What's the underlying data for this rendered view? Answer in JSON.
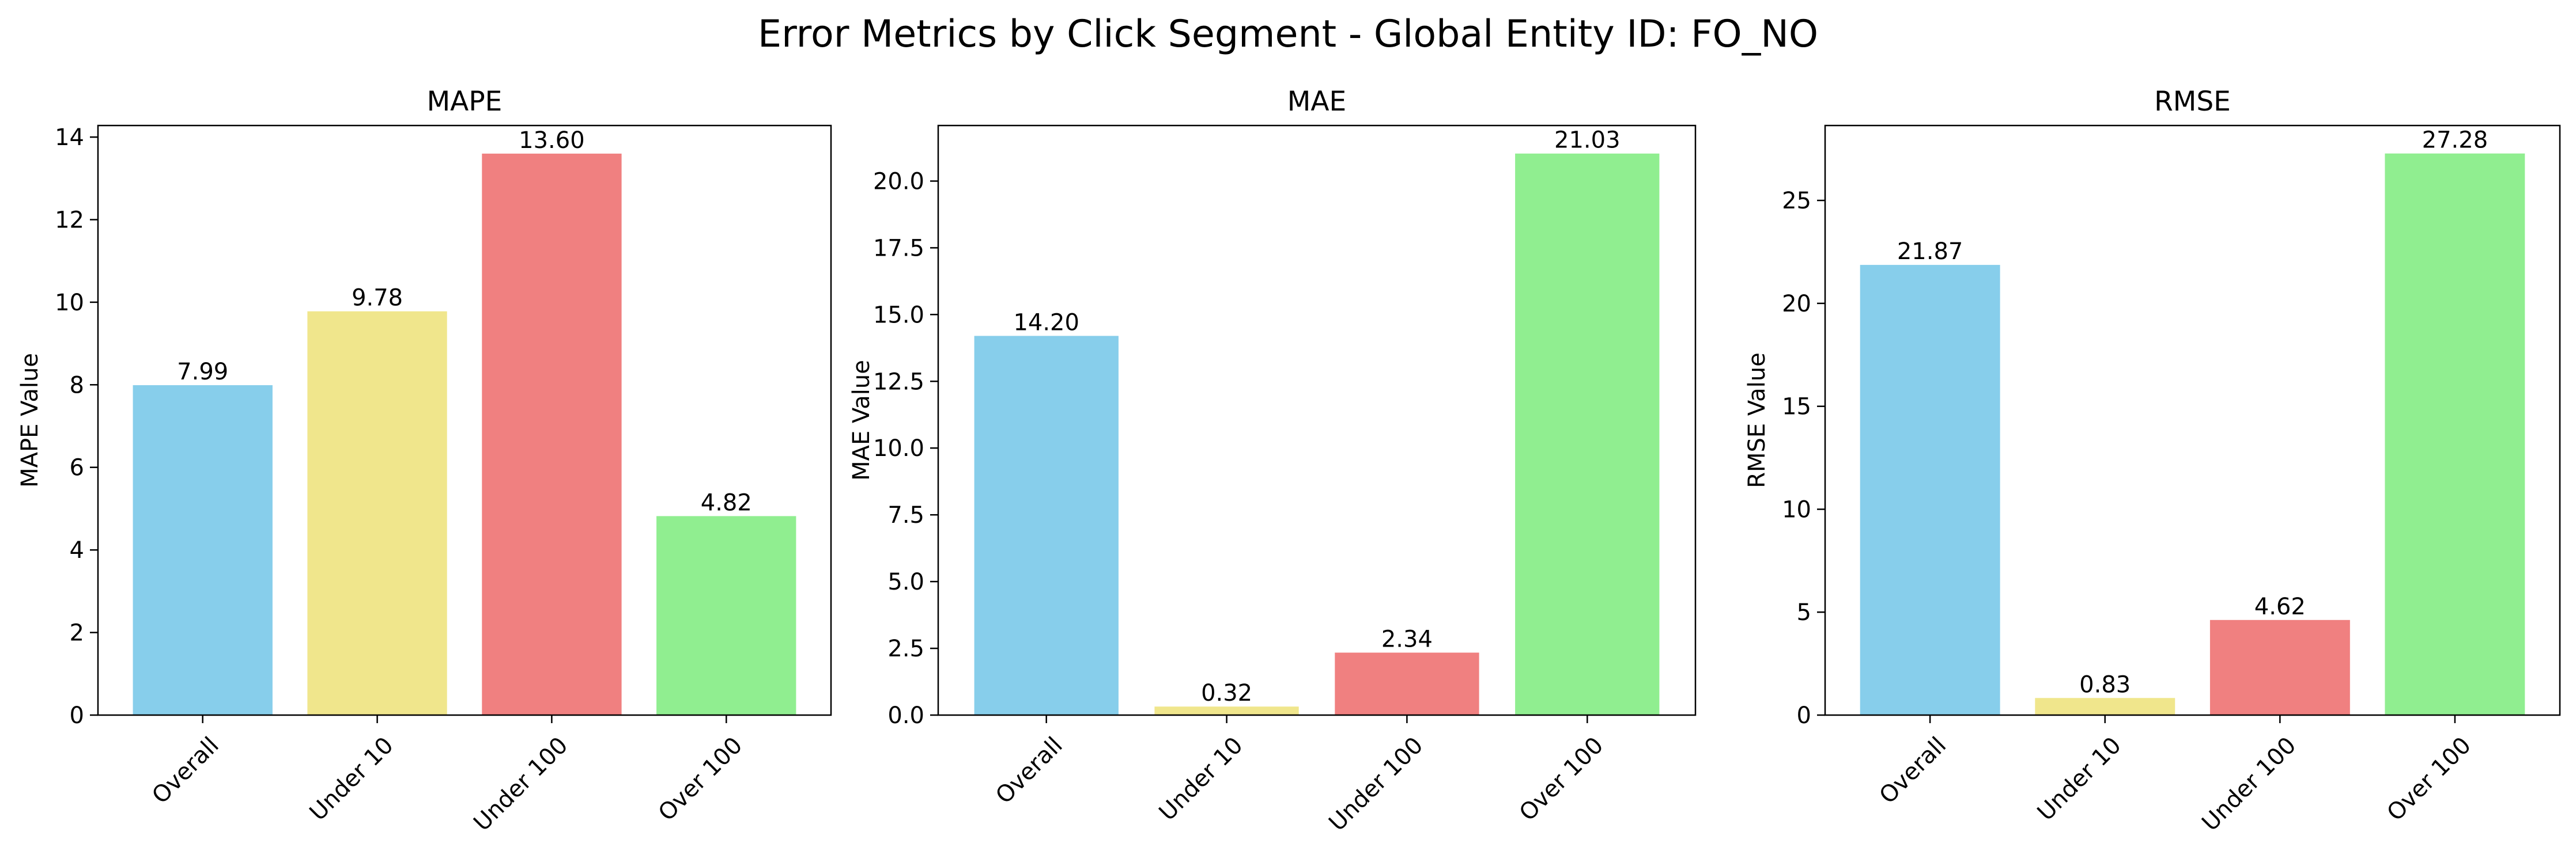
{
  "figure": {
    "suptitle": "Error Metrics by Click Segment - Global Entity ID: FO_NO"
  },
  "chart_data": [
    {
      "type": "bar",
      "title": "MAPE",
      "xlabel": "",
      "ylabel": "MAPE Value",
      "categories": [
        "Overall",
        "Under 10",
        "Under 100",
        "Over 100"
      ],
      "values": [
        7.99,
        9.78,
        13.6,
        4.82
      ],
      "value_labels": [
        "7.99",
        "9.78",
        "13.60",
        "4.82"
      ],
      "ylim": [
        0,
        14.28
      ],
      "yticks": [
        0,
        2,
        4,
        6,
        8,
        10,
        12,
        14
      ],
      "ytick_labels": [
        "0",
        "2",
        "4",
        "6",
        "8",
        "10",
        "12",
        "14"
      ],
      "colors": [
        "#87ceeb",
        "#f0e68c",
        "#f08080",
        "#90ee90"
      ],
      "grid": false,
      "legend": "none"
    },
    {
      "type": "bar",
      "title": "MAE",
      "xlabel": "",
      "ylabel": "MAE Value",
      "categories": [
        "Overall",
        "Under 10",
        "Under 100",
        "Over 100"
      ],
      "values": [
        14.2,
        0.32,
        2.34,
        21.03
      ],
      "value_labels": [
        "14.20",
        "0.32",
        "2.34",
        "21.03"
      ],
      "ylim": [
        0,
        22.08
      ],
      "yticks": [
        0,
        2.5,
        5,
        7.5,
        10,
        12.5,
        15,
        17.5,
        20
      ],
      "ytick_labels": [
        "0.0",
        "2.5",
        "5.0",
        "7.5",
        "10.0",
        "12.5",
        "15.0",
        "17.5",
        "20.0"
      ],
      "colors": [
        "#87ceeb",
        "#f0e68c",
        "#f08080",
        "#90ee90"
      ],
      "grid": false,
      "legend": "none"
    },
    {
      "type": "bar",
      "title": "RMSE",
      "xlabel": "",
      "ylabel": "RMSE Value",
      "categories": [
        "Overall",
        "Under 10",
        "Under 100",
        "Over 100"
      ],
      "values": [
        21.87,
        0.83,
        4.62,
        27.28
      ],
      "value_labels": [
        "21.87",
        "0.83",
        "4.62",
        "27.28"
      ],
      "ylim": [
        0,
        28.64
      ],
      "yticks": [
        0,
        5,
        10,
        15,
        20,
        25
      ],
      "ytick_labels": [
        "0",
        "5",
        "10",
        "15",
        "20",
        "25"
      ],
      "colors": [
        "#87ceeb",
        "#f0e68c",
        "#f08080",
        "#90ee90"
      ],
      "grid": false,
      "legend": "none"
    }
  ]
}
